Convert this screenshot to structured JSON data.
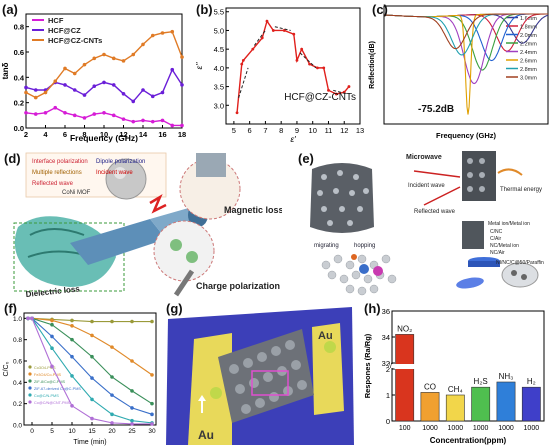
{
  "panels": {
    "a": {
      "label": "(a)",
      "ylabel": "tanδ",
      "xlabel": "Frequency (GHz)",
      "legend": [
        "HCF",
        "HCF@CZ",
        "HCF@CZ-CNTs"
      ],
      "colors": {
        "HCF": "#d61cd6",
        "HCF@CZ": "#6a1ed8",
        "HCF@CZ-CNTs": "#e07b26"
      }
    },
    "b": {
      "label": "(b)",
      "ylabel": "ε''",
      "xlabel": "ε'",
      "annotation": "HCF@CZ-CNTs"
    },
    "c": {
      "label": "(c)",
      "ylabel": "Reflection(dB)",
      "xlabel": "Frequency (GHz)",
      "annotation": "-75.2dB",
      "legend": [
        "1.6mm",
        "1.8mm",
        "2.0mm",
        "2.2mm",
        "2.4mm",
        "2.6mm",
        "2.8mm",
        "3.0mm"
      ]
    },
    "d": {
      "label": "(d)",
      "legend": [
        "Interface polarization",
        "Dipole polarization",
        "Multiple reflections",
        "Incident wave",
        "Reflected wave",
        "CoNi MOF"
      ],
      "callouts": [
        "Magnetic loss",
        "Charge polarization",
        "Dielectric loss"
      ]
    },
    "e": {
      "label": "(e)",
      "texts": [
        "Microwave",
        "Incident wave",
        "Thermal energy",
        "Reflected wave",
        "migrating",
        "hopping",
        "C/NC",
        "C/Air",
        "NC/Metal ion",
        "NC/Air",
        "Metal ion/Metal ion",
        "NI/NC/C@50/Paraffin"
      ]
    },
    "f": {
      "label": "(f)",
      "ylabel": "C/C₀",
      "xlabel": "Time (min)",
      "legend": [
        "Co3O4-PMS",
        "Fe3O4/Co-PMS",
        "ZIF-8/Co@C-PMS",
        "ZIF-67-derived Co@C-PMS",
        "Co@C/N-PMS",
        "Co@C/N@CNT-PMS"
      ]
    },
    "g": {
      "label": "(g)",
      "texts": [
        "Au",
        "Au"
      ]
    },
    "h": {
      "label": "(h)",
      "ylabel": "Respones (Ra/Rg)",
      "xlabel": "Concentration(ppm)"
    }
  },
  "chart_data": [
    {
      "panel": "a",
      "type": "line",
      "xlabel": "Frequency (GHz)",
      "ylabel": "tanδ",
      "xlim": [
        2,
        18
      ],
      "ylim": [
        0.0,
        0.9
      ],
      "xticks": [
        2,
        4,
        6,
        8,
        10,
        12,
        14,
        16,
        18
      ],
      "yticks": [
        0.0,
        0.2,
        0.4,
        0.6,
        0.8
      ],
      "x": [
        2,
        3,
        4,
        5,
        6,
        7,
        8,
        9,
        10,
        11,
        12,
        13,
        14,
        15,
        16,
        17,
        18
      ],
      "series": [
        {
          "name": "HCF",
          "values": [
            0.12,
            0.11,
            0.12,
            0.16,
            0.12,
            0.1,
            0.08,
            0.11,
            0.12,
            0.1,
            0.07,
            0.05,
            0.06,
            0.05,
            0.06,
            0.02,
            0.02
          ]
        },
        {
          "name": "HCF@CZ",
          "values": [
            0.32,
            0.3,
            0.3,
            0.36,
            0.34,
            0.3,
            0.26,
            0.33,
            0.36,
            0.34,
            0.27,
            0.21,
            0.3,
            0.25,
            0.28,
            0.46,
            0.34
          ]
        },
        {
          "name": "HCF@CZ-CNTs",
          "values": [
            0.28,
            0.24,
            0.28,
            0.37,
            0.47,
            0.43,
            0.5,
            0.55,
            0.58,
            0.55,
            0.53,
            0.58,
            0.66,
            0.73,
            0.75,
            0.76,
            0.56
          ]
        }
      ]
    },
    {
      "panel": "b",
      "type": "line",
      "title": "HCF@CZ-CNTs",
      "xlabel": "ε'",
      "ylabel": "ε''",
      "xlim": [
        4.5,
        13
      ],
      "ylim": [
        2.5,
        5.6
      ],
      "xticks": [
        5,
        6,
        7,
        8,
        9,
        10,
        11,
        12,
        13
      ],
      "yticks": [
        3.0,
        3.5,
        4.0,
        4.5,
        5.0,
        5.5
      ],
      "x": [
        5.2,
        5.5,
        5.6,
        6.2,
        6.8,
        7.1,
        7.5,
        8.2,
        8.8,
        9.0,
        9.3,
        9.8,
        10.3,
        10.7,
        11.0,
        11.5,
        12.0,
        12.3
      ],
      "series": [
        {
          "name": "HCF@CZ-CNTs",
          "values": [
            2.8,
            4.1,
            4.2,
            4.5,
            4.8,
            5.25,
            5.0,
            5.0,
            4.9,
            4.2,
            4.5,
            4.1,
            4.0,
            4.0,
            3.4,
            3.3,
            3.35,
            3.5
          ]
        }
      ]
    },
    {
      "panel": "c",
      "type": "line",
      "xlabel": "Frequency (GHz)",
      "ylabel": "Reflection(dB)",
      "annotation": "-75.2dB",
      "series": [
        {
          "name": "1.6mm",
          "dip_frequency": "15.5",
          "min_dB": -22
        },
        {
          "name": "1.8mm",
          "dip_frequency": "14.0",
          "min_dB": -28
        },
        {
          "name": "2.0mm",
          "dip_frequency": "12.5",
          "min_dB": -35
        },
        {
          "name": "2.2mm",
          "dip_frequency": "11.6",
          "min_dB": -42
        },
        {
          "name": "2.4mm",
          "dip_frequency": "10.8",
          "min_dB": -52
        },
        {
          "name": "2.6mm",
          "dip_frequency": "10.2",
          "min_dB": -75.2
        },
        {
          "name": "2.8mm",
          "dip_frequency": "9.6",
          "min_dB": -30
        },
        {
          "name": "3.0mm",
          "dip_frequency": "9.0",
          "min_dB": -25
        }
      ]
    },
    {
      "panel": "f",
      "type": "line",
      "xlabel": "Time (min)",
      "ylabel": "C/C₀",
      "xlim": [
        -2,
        31
      ],
      "ylim": [
        0,
        1.05
      ],
      "xticks": [
        0,
        5,
        10,
        15,
        20,
        25,
        30
      ],
      "yticks": [
        0.0,
        0.2,
        0.4,
        0.6,
        0.8,
        1.0
      ],
      "x": [
        -1,
        0,
        5,
        10,
        15,
        20,
        25,
        30
      ],
      "series": [
        {
          "name": "Co3O4-PMS",
          "values": [
            1,
            1,
            0.99,
            0.98,
            0.97,
            0.97,
            0.97,
            0.97
          ]
        },
        {
          "name": "Fe3O4/Co-PMS",
          "values": [
            1,
            1,
            0.98,
            0.93,
            0.84,
            0.73,
            0.6,
            0.47
          ]
        },
        {
          "name": "ZIF-8/Co@C-PMS",
          "values": [
            1,
            1,
            0.94,
            0.8,
            0.64,
            0.45,
            0.32,
            0.2
          ]
        },
        {
          "name": "ZIF-67-derived Co@C-PMS",
          "values": [
            1,
            1,
            0.83,
            0.64,
            0.44,
            0.28,
            0.16,
            0.1
          ]
        },
        {
          "name": "Co@C/N-PMS",
          "values": [
            1,
            1,
            0.72,
            0.46,
            0.24,
            0.1,
            0.04,
            0.02
          ]
        },
        {
          "name": "Co@C/N@CNT-PMS",
          "values": [
            1,
            1,
            0.55,
            0.18,
            0.06,
            0.02,
            0.01,
            0.01
          ]
        }
      ]
    },
    {
      "panel": "h",
      "type": "bar",
      "xlabel": "Concentration(ppm)",
      "ylabel": "Respones (Ra/Rg)",
      "yticks_upper": [
        32,
        34,
        36
      ],
      "yticks_lower": [
        0,
        1,
        2
      ],
      "categories": [
        "100",
        "1000",
        "1000",
        "1000",
        "1000",
        "1000"
      ],
      "bar_labels": [
        "NO₂",
        "CO",
        "CH₄",
        "H₂S",
        "NH₃",
        "H₂"
      ],
      "values": [
        34.2,
        1.1,
        1.0,
        1.3,
        1.5,
        1.3
      ],
      "colors": [
        "#d9351e",
        "#f0a030",
        "#f2d64a",
        "#4fbf4f",
        "#2f7fd9",
        "#3f3fc9"
      ]
    }
  ]
}
